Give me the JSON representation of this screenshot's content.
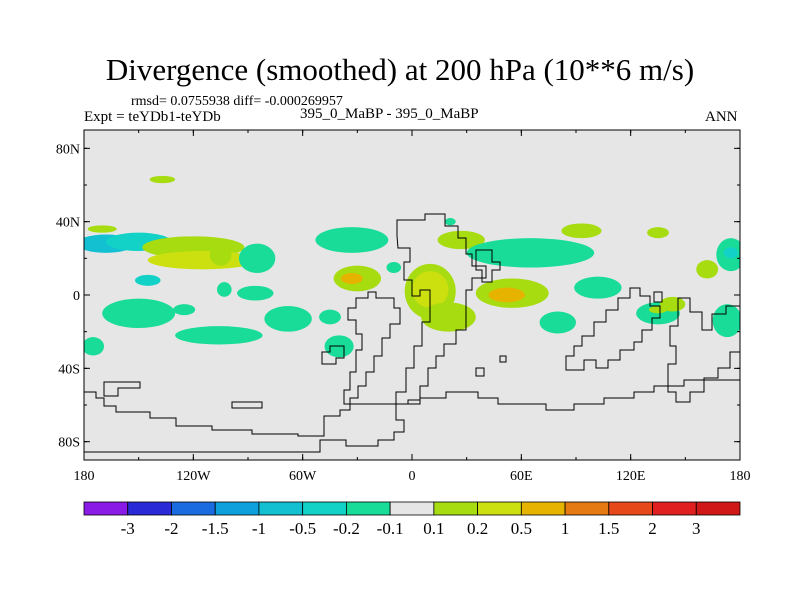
{
  "chart_data": {
    "type": "heatmap",
    "title": "Divergence (smoothed) at 200 hPa (10**6 m/s)",
    "stats": "rmsd= 0.0755938 diff= -0.000269957",
    "left_label": "Expt = teYDb1-teYDb",
    "center_label": "395_0_MaBP - 395_0_MaBP",
    "right_label": "ANN",
    "x_axis": {
      "range": [
        -180,
        180
      ],
      "ticks": [
        {
          "value": -180,
          "label": "180"
        },
        {
          "value": -120,
          "label": "120W"
        },
        {
          "value": -60,
          "label": "60W"
        },
        {
          "value": 0,
          "label": "0"
        },
        {
          "value": 60,
          "label": "60E"
        },
        {
          "value": 120,
          "label": "120E"
        },
        {
          "value": 180,
          "label": "180"
        }
      ]
    },
    "y_axis": {
      "range": [
        -90,
        90
      ],
      "ticks": [
        {
          "value": 80,
          "label": "80N"
        },
        {
          "value": 40,
          "label": "40N"
        },
        {
          "value": 0,
          "label": "0"
        },
        {
          "value": -40,
          "label": "40S"
        },
        {
          "value": -80,
          "label": "80S"
        }
      ]
    },
    "colorbar": {
      "labels": [
        "-3",
        "-2",
        "-1.5",
        "-1",
        "-0.5",
        "-0.2",
        "-0.1",
        "0.1",
        "0.2",
        "0.5",
        "1",
        "1.5",
        "2",
        "3"
      ],
      "colors": [
        "#8a1ae6",
        "#2a2ad6",
        "#1a6ae0",
        "#0ea0dc",
        "#12c0d2",
        "#12d2c8",
        "#18dc98",
        "#e6e6e6",
        "#a6dc10",
        "#cce010",
        "#e6b400",
        "#e67a12",
        "#e6481a",
        "#e02020",
        "#d01818"
      ]
    },
    "anomalies": [
      {
        "lon": -168,
        "lat": 28,
        "rx": 16,
        "ry": 5,
        "level": "-0.5"
      },
      {
        "lon": -150,
        "lat": 29,
        "rx": 18,
        "ry": 5,
        "level": "-0.2"
      },
      {
        "lon": -120,
        "lat": 26,
        "rx": 28,
        "ry": 6,
        "level": "0.1"
      },
      {
        "lon": -115,
        "lat": 19,
        "rx": 30,
        "ry": 5,
        "level": "0.2"
      },
      {
        "lon": -137,
        "lat": 63,
        "rx": 7,
        "ry": 2,
        "level": "0.1"
      },
      {
        "lon": -170,
        "lat": 36,
        "rx": 8,
        "ry": 2,
        "level": "0.1"
      },
      {
        "lon": -145,
        "lat": 8,
        "rx": 7,
        "ry": 3,
        "level": "-0.2"
      },
      {
        "lon": -103,
        "lat": 3,
        "rx": 4,
        "ry": 4,
        "level": "-0.1"
      },
      {
        "lon": -150,
        "lat": -10,
        "rx": 20,
        "ry": 8,
        "level": "-0.1"
      },
      {
        "lon": -106,
        "lat": -22,
        "rx": 24,
        "ry": 5,
        "level": "-0.1"
      },
      {
        "lon": -125,
        "lat": -8,
        "rx": 6,
        "ry": 3,
        "level": "-0.1"
      },
      {
        "lon": -175,
        "lat": -28,
        "rx": 6,
        "ry": 5,
        "level": "-0.1"
      },
      {
        "lon": -105,
        "lat": 22,
        "rx": 6,
        "ry": 6,
        "level": "0.1"
      },
      {
        "lon": -85,
        "lat": 20,
        "rx": 10,
        "ry": 8,
        "level": "-0.1"
      },
      {
        "lon": -86,
        "lat": 1,
        "rx": 10,
        "ry": 4,
        "level": "-0.1"
      },
      {
        "lon": -68,
        "lat": -13,
        "rx": 13,
        "ry": 7,
        "level": "-0.1"
      },
      {
        "lon": -33,
        "lat": 30,
        "rx": 20,
        "ry": 7,
        "level": "-0.1"
      },
      {
        "lon": -30,
        "lat": 9,
        "rx": 13,
        "ry": 7,
        "level": "0.1"
      },
      {
        "lon": -33,
        "lat": 9,
        "rx": 6,
        "ry": 3,
        "level": "0.5"
      },
      {
        "lon": -45,
        "lat": -12,
        "rx": 6,
        "ry": 4,
        "level": "-0.1"
      },
      {
        "lon": -40,
        "lat": -28,
        "rx": 8,
        "ry": 6,
        "level": "-0.1"
      },
      {
        "lon": -10,
        "lat": 15,
        "rx": 4,
        "ry": 3,
        "level": "-0.1"
      },
      {
        "lon": 10,
        "lat": 2,
        "rx": 14,
        "ry": 15,
        "level": "0.1"
      },
      {
        "lon": 10,
        "lat": 3,
        "rx": 10,
        "ry": 10,
        "level": "0.2"
      },
      {
        "lon": 20,
        "lat": -12,
        "rx": 15,
        "ry": 8,
        "level": "0.1"
      },
      {
        "lon": 27,
        "lat": 30,
        "rx": 13,
        "ry": 5,
        "level": "0.1"
      },
      {
        "lon": 21,
        "lat": 40,
        "rx": 3,
        "ry": 2,
        "level": "-0.1"
      },
      {
        "lon": 55,
        "lat": 1,
        "rx": 20,
        "ry": 8,
        "level": "0.1"
      },
      {
        "lon": 52,
        "lat": 0,
        "rx": 10,
        "ry": 4,
        "level": "0.5"
      },
      {
        "lon": 65,
        "lat": 23,
        "rx": 35,
        "ry": 8,
        "level": "-0.1"
      },
      {
        "lon": 80,
        "lat": -15,
        "rx": 10,
        "ry": 6,
        "level": "-0.1"
      },
      {
        "lon": 102,
        "lat": 4,
        "rx": 13,
        "ry": 6,
        "level": "-0.1"
      },
      {
        "lon": 93,
        "lat": 35,
        "rx": 11,
        "ry": 4,
        "level": "0.1"
      },
      {
        "lon": 135,
        "lat": 34,
        "rx": 6,
        "ry": 3,
        "level": "0.1"
      },
      {
        "lon": 135,
        "lat": -10,
        "rx": 12,
        "ry": 6,
        "level": "-0.1"
      },
      {
        "lon": 135,
        "lat": -8,
        "rx": 5,
        "ry": 2,
        "level": "0.1"
      },
      {
        "lon": 173,
        "lat": -14,
        "rx": 8,
        "ry": 9,
        "level": "-0.1"
      },
      {
        "lon": 175,
        "lat": 22,
        "rx": 8,
        "ry": 9,
        "level": "-0.1"
      },
      {
        "lon": 175,
        "lat": 23,
        "rx": 4,
        "ry": 3,
        "level": "-0.2"
      },
      {
        "lon": 162,
        "lat": 14,
        "rx": 6,
        "ry": 5,
        "level": "0.1"
      },
      {
        "lon": 143,
        "lat": -5,
        "rx": 7,
        "ry": 4,
        "level": "0.1"
      }
    ]
  }
}
